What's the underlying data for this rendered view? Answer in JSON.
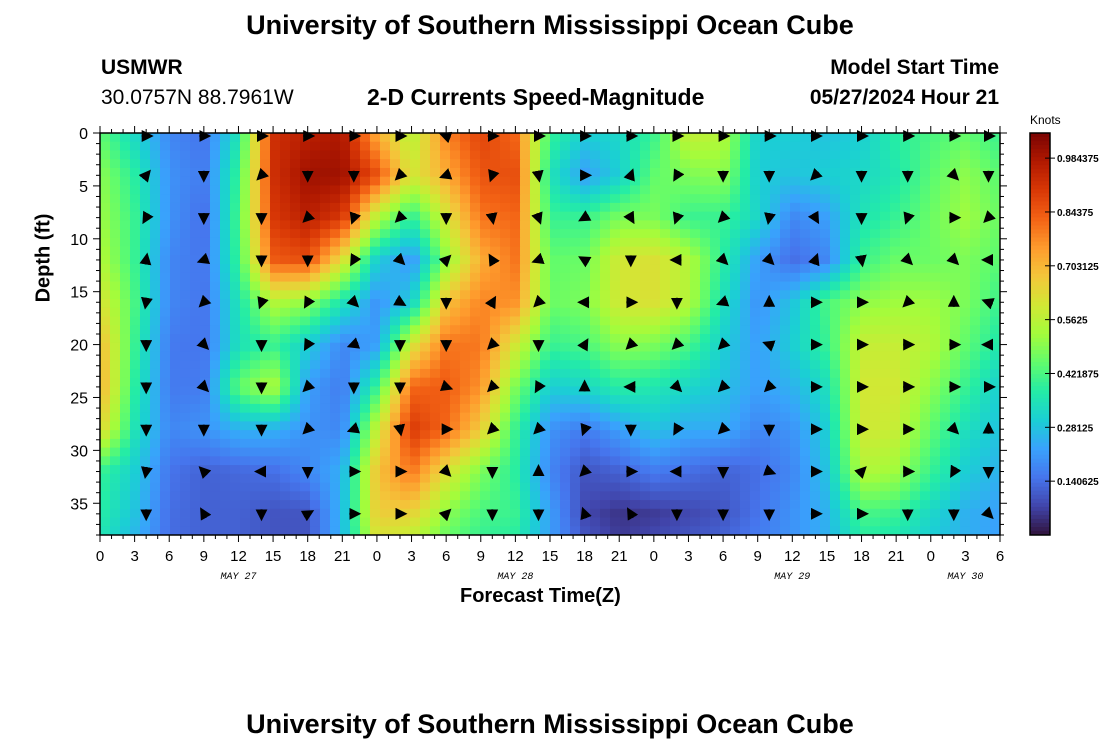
{
  "header": {
    "title": "University of Southern Mississippi Ocean Cube",
    "station": "USMWR",
    "coords": "30.0757N  88.7961W",
    "subtitle": "2-D Currents Speed-Magnitude",
    "model_start_label": "Model Start Time",
    "model_start_value": "05/27/2024 Hour 21"
  },
  "footer": {
    "title": "University of Southern Mississippi Ocean Cube"
  },
  "chart_data": {
    "type": "heatmap",
    "title": "2-D Currents Speed-Magnitude",
    "xlabel": "Forecast Time(Z)",
    "ylabel": "Depth (ft)",
    "x_tick_labels": [
      "0",
      "3",
      "6",
      "9",
      "12",
      "15",
      "18",
      "21",
      "0",
      "3",
      "6",
      "9",
      "12",
      "15",
      "18",
      "21",
      "0",
      "3",
      "6",
      "9",
      "12",
      "15",
      "18",
      "21",
      "0",
      "3",
      "6"
    ],
    "x_date_labels": [
      {
        "label": "MAY 27",
        "at_hour": 12
      },
      {
        "label": "MAY 28",
        "at_hour": 36
      },
      {
        "label": "MAY 29",
        "at_hour": 60
      },
      {
        "label": "MAY 30",
        "at_hour": 75
      }
    ],
    "xlim_hours": [
      0,
      78
    ],
    "y_ticks": [
      0,
      5,
      10,
      15,
      20,
      25,
      30,
      35
    ],
    "ylim_ft": [
      0,
      38
    ],
    "colorbar": {
      "unit": "Knots",
      "range": [
        0.0,
        1.05
      ],
      "tick_labels": [
        "0.984375",
        "0.84375",
        "0.703125",
        "0.5625",
        "0.421875",
        "0.28125",
        "0.140625"
      ],
      "tick_values": [
        0.984375,
        0.84375,
        0.703125,
        0.5625,
        0.421875,
        0.28125,
        0.140625
      ],
      "colors": [
        "#30123b",
        "#4145ab",
        "#4675ed",
        "#39a2fc",
        "#1bcfd4",
        "#24eca6",
        "#61fc6c",
        "#a4fc3b",
        "#d1e834",
        "#f3c63a",
        "#fe9b2d",
        "#f36315",
        "#d93806",
        "#b11901",
        "#7a0402"
      ]
    },
    "speed_x_hours": [
      0,
      3,
      6,
      9,
      12,
      15,
      18,
      21,
      24,
      27,
      30,
      33,
      36,
      39,
      42,
      45,
      48,
      51,
      54,
      57,
      60,
      63,
      66,
      69,
      72,
      75,
      78
    ],
    "speed_y_ft": [
      0,
      4,
      8,
      12,
      16,
      20,
      24,
      28,
      32,
      36,
      38
    ],
    "speed_knots": [
      [
        0.45,
        0.32,
        0.18,
        0.15,
        0.35,
        0.92,
        0.96,
        0.98,
        0.72,
        0.55,
        0.78,
        0.88,
        0.82,
        0.4,
        0.3,
        0.32,
        0.4,
        0.58,
        0.55,
        0.3,
        0.3,
        0.28,
        0.3,
        0.38,
        0.42,
        0.45,
        0.4
      ],
      [
        0.5,
        0.38,
        0.2,
        0.16,
        0.4,
        0.92,
        1.0,
        1.0,
        0.86,
        0.6,
        0.72,
        0.85,
        0.86,
        0.35,
        0.22,
        0.3,
        0.45,
        0.48,
        0.5,
        0.3,
        0.28,
        0.3,
        0.32,
        0.36,
        0.44,
        0.5,
        0.44
      ],
      [
        0.52,
        0.4,
        0.2,
        0.14,
        0.42,
        0.9,
        0.96,
        0.9,
        0.55,
        0.38,
        0.6,
        0.8,
        0.82,
        0.4,
        0.4,
        0.48,
        0.48,
        0.4,
        0.4,
        0.32,
        0.18,
        0.22,
        0.35,
        0.4,
        0.46,
        0.52,
        0.46
      ],
      [
        0.55,
        0.4,
        0.18,
        0.15,
        0.4,
        0.84,
        0.86,
        0.62,
        0.3,
        0.2,
        0.5,
        0.72,
        0.8,
        0.45,
        0.46,
        0.6,
        0.62,
        0.55,
        0.38,
        0.22,
        0.14,
        0.18,
        0.4,
        0.46,
        0.46,
        0.48,
        0.44
      ],
      [
        0.62,
        0.42,
        0.18,
        0.15,
        0.35,
        0.55,
        0.5,
        0.35,
        0.2,
        0.3,
        0.68,
        0.78,
        0.76,
        0.46,
        0.48,
        0.6,
        0.62,
        0.55,
        0.34,
        0.2,
        0.28,
        0.42,
        0.5,
        0.52,
        0.52,
        0.48,
        0.4
      ],
      [
        0.7,
        0.4,
        0.16,
        0.15,
        0.34,
        0.4,
        0.3,
        0.18,
        0.22,
        0.6,
        0.8,
        0.8,
        0.6,
        0.4,
        0.42,
        0.5,
        0.48,
        0.42,
        0.3,
        0.22,
        0.3,
        0.4,
        0.58,
        0.58,
        0.55,
        0.45,
        0.36
      ],
      [
        0.72,
        0.38,
        0.16,
        0.16,
        0.45,
        0.55,
        0.22,
        0.16,
        0.4,
        0.82,
        0.84,
        0.76,
        0.48,
        0.3,
        0.32,
        0.38,
        0.36,
        0.32,
        0.28,
        0.22,
        0.25,
        0.34,
        0.6,
        0.6,
        0.5,
        0.4,
        0.3
      ],
      [
        0.65,
        0.35,
        0.18,
        0.2,
        0.25,
        0.25,
        0.2,
        0.18,
        0.58,
        0.9,
        0.82,
        0.66,
        0.4,
        0.2,
        0.16,
        0.22,
        0.28,
        0.24,
        0.24,
        0.18,
        0.2,
        0.3,
        0.6,
        0.58,
        0.45,
        0.34,
        0.28
      ],
      [
        0.4,
        0.3,
        0.15,
        0.12,
        0.13,
        0.14,
        0.18,
        0.25,
        0.68,
        0.8,
        0.62,
        0.48,
        0.38,
        0.18,
        0.1,
        0.12,
        0.16,
        0.14,
        0.12,
        0.14,
        0.18,
        0.28,
        0.55,
        0.52,
        0.4,
        0.3,
        0.25
      ],
      [
        0.38,
        0.28,
        0.14,
        0.12,
        0.12,
        0.1,
        0.1,
        0.26,
        0.66,
        0.65,
        0.5,
        0.42,
        0.4,
        0.22,
        0.08,
        0.05,
        0.06,
        0.08,
        0.1,
        0.15,
        0.2,
        0.25,
        0.42,
        0.4,
        0.32,
        0.25,
        0.22
      ],
      [
        0.36,
        0.26,
        0.14,
        0.12,
        0.12,
        0.1,
        0.1,
        0.26,
        0.62,
        0.58,
        0.46,
        0.4,
        0.38,
        0.22,
        0.1,
        0.06,
        0.08,
        0.1,
        0.12,
        0.16,
        0.2,
        0.25,
        0.38,
        0.36,
        0.3,
        0.25,
        0.22
      ]
    ],
    "vector_x_hours": [
      4,
      9,
      14,
      18,
      22,
      26,
      30,
      34,
      38,
      42,
      46,
      50,
      54,
      58,
      62,
      66,
      70,
      74,
      77
    ],
    "vector_y_ft": [
      0,
      4,
      8,
      12,
      16,
      20,
      24,
      28,
      32,
      36
    ],
    "vector_dir_deg": [
      [
        0,
        0,
        0,
        0,
        0,
        0,
        200,
        0,
        0,
        0,
        0,
        0,
        0,
        0,
        0,
        0,
        0,
        0,
        0
      ],
      [
        310,
        90,
        135,
        90,
        90,
        135,
        160,
        110,
        80,
        0,
        290,
        120,
        90,
        90,
        135,
        90,
        90,
        45,
        90
      ],
      [
        120,
        90,
        90,
        135,
        110,
        135,
        90,
        80,
        70,
        150,
        60,
        110,
        135,
        100,
        60,
        90,
        110,
        0,
        135
      ],
      [
        280,
        160,
        90,
        90,
        120,
        45,
        315,
        240,
        160,
        210,
        90,
        180,
        45,
        45,
        290,
        80,
        45,
        45,
        180
      ],
      [
        100,
        135,
        110,
        120,
        45,
        30,
        90,
        300,
        135,
        180,
        0,
        90,
        160,
        270,
        0,
        0,
        135,
        270,
        200
      ],
      [
        90,
        45,
        90,
        120,
        160,
        90,
        90,
        135,
        90,
        300,
        135,
        135,
        135,
        200,
        0,
        0,
        0,
        0,
        180
      ],
      [
        90,
        45,
        90,
        135,
        90,
        90,
        20,
        135,
        120,
        270,
        180,
        45,
        135,
        135,
        0,
        0,
        0,
        0,
        0
      ],
      [
        90,
        90,
        90,
        135,
        160,
        80,
        0,
        135,
        135,
        110,
        90,
        120,
        135,
        90,
        0,
        0,
        0,
        45,
        270
      ],
      [
        100,
        225,
        180,
        90,
        0,
        0,
        45,
        90,
        270,
        135,
        0,
        180,
        90,
        20,
        0,
        315,
        0,
        120,
        90
      ],
      [
        90,
        240,
        90,
        330,
        0,
        0,
        315,
        90,
        90,
        250,
        240,
        90,
        90,
        90,
        0,
        0,
        90,
        90,
        45
      ]
    ]
  }
}
